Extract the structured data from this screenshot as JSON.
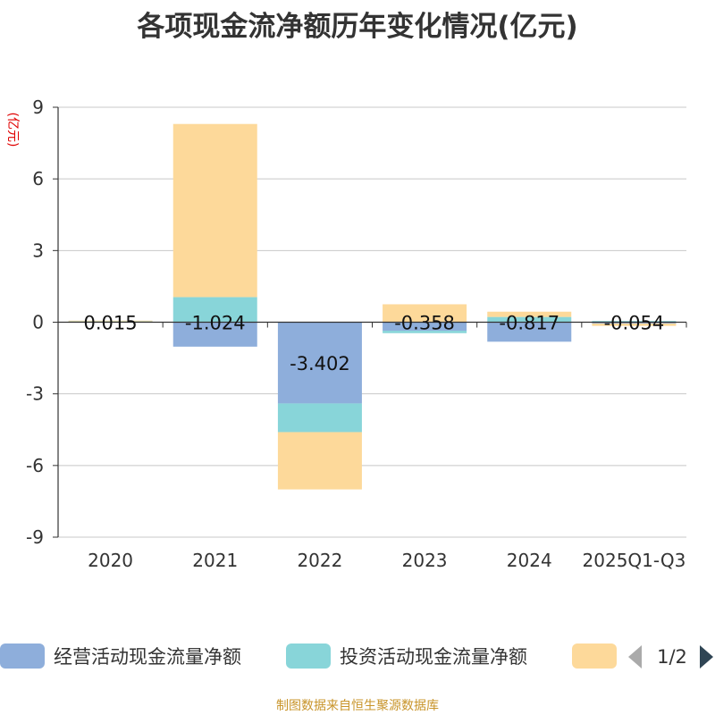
{
  "chart_data": {
    "type": "bar",
    "stacked": true,
    "title": "各项现金流净额历年变化情况(亿元)",
    "ylabel": "(亿元)",
    "xlabel": "",
    "ylim": [
      -9,
      9
    ],
    "yticks": [
      9,
      6,
      3,
      0,
      -3,
      -6,
      -9
    ],
    "grid": true,
    "categories": [
      "2020",
      "2021",
      "2022",
      "2023",
      "2024",
      "2025Q1-Q3"
    ],
    "series": [
      {
        "name": "经营活动现金流量净额",
        "color": "#8eaedb",
        "values": [
          0.015,
          -1.024,
          -3.402,
          -0.358,
          -0.817,
          -0.054
        ]
      },
      {
        "name": "投资活动现金流量净额",
        "color": "#88d5d9",
        "values": [
          0.02,
          1.05,
          -1.2,
          -0.1,
          0.22,
          0.05
        ]
      },
      {
        "name": "",
        "color": "#fdd99a",
        "values": [
          0.03,
          7.25,
          -2.4,
          0.75,
          0.22,
          -0.1
        ]
      }
    ],
    "data_labels": [
      "0.015",
      "-1.024",
      "-3.402",
      "-0.358",
      "-0.817",
      "-0.054"
    ],
    "legend": {
      "position": "bottom",
      "page": "1/2"
    }
  },
  "footer": "制图数据来自恒生聚源数据库"
}
